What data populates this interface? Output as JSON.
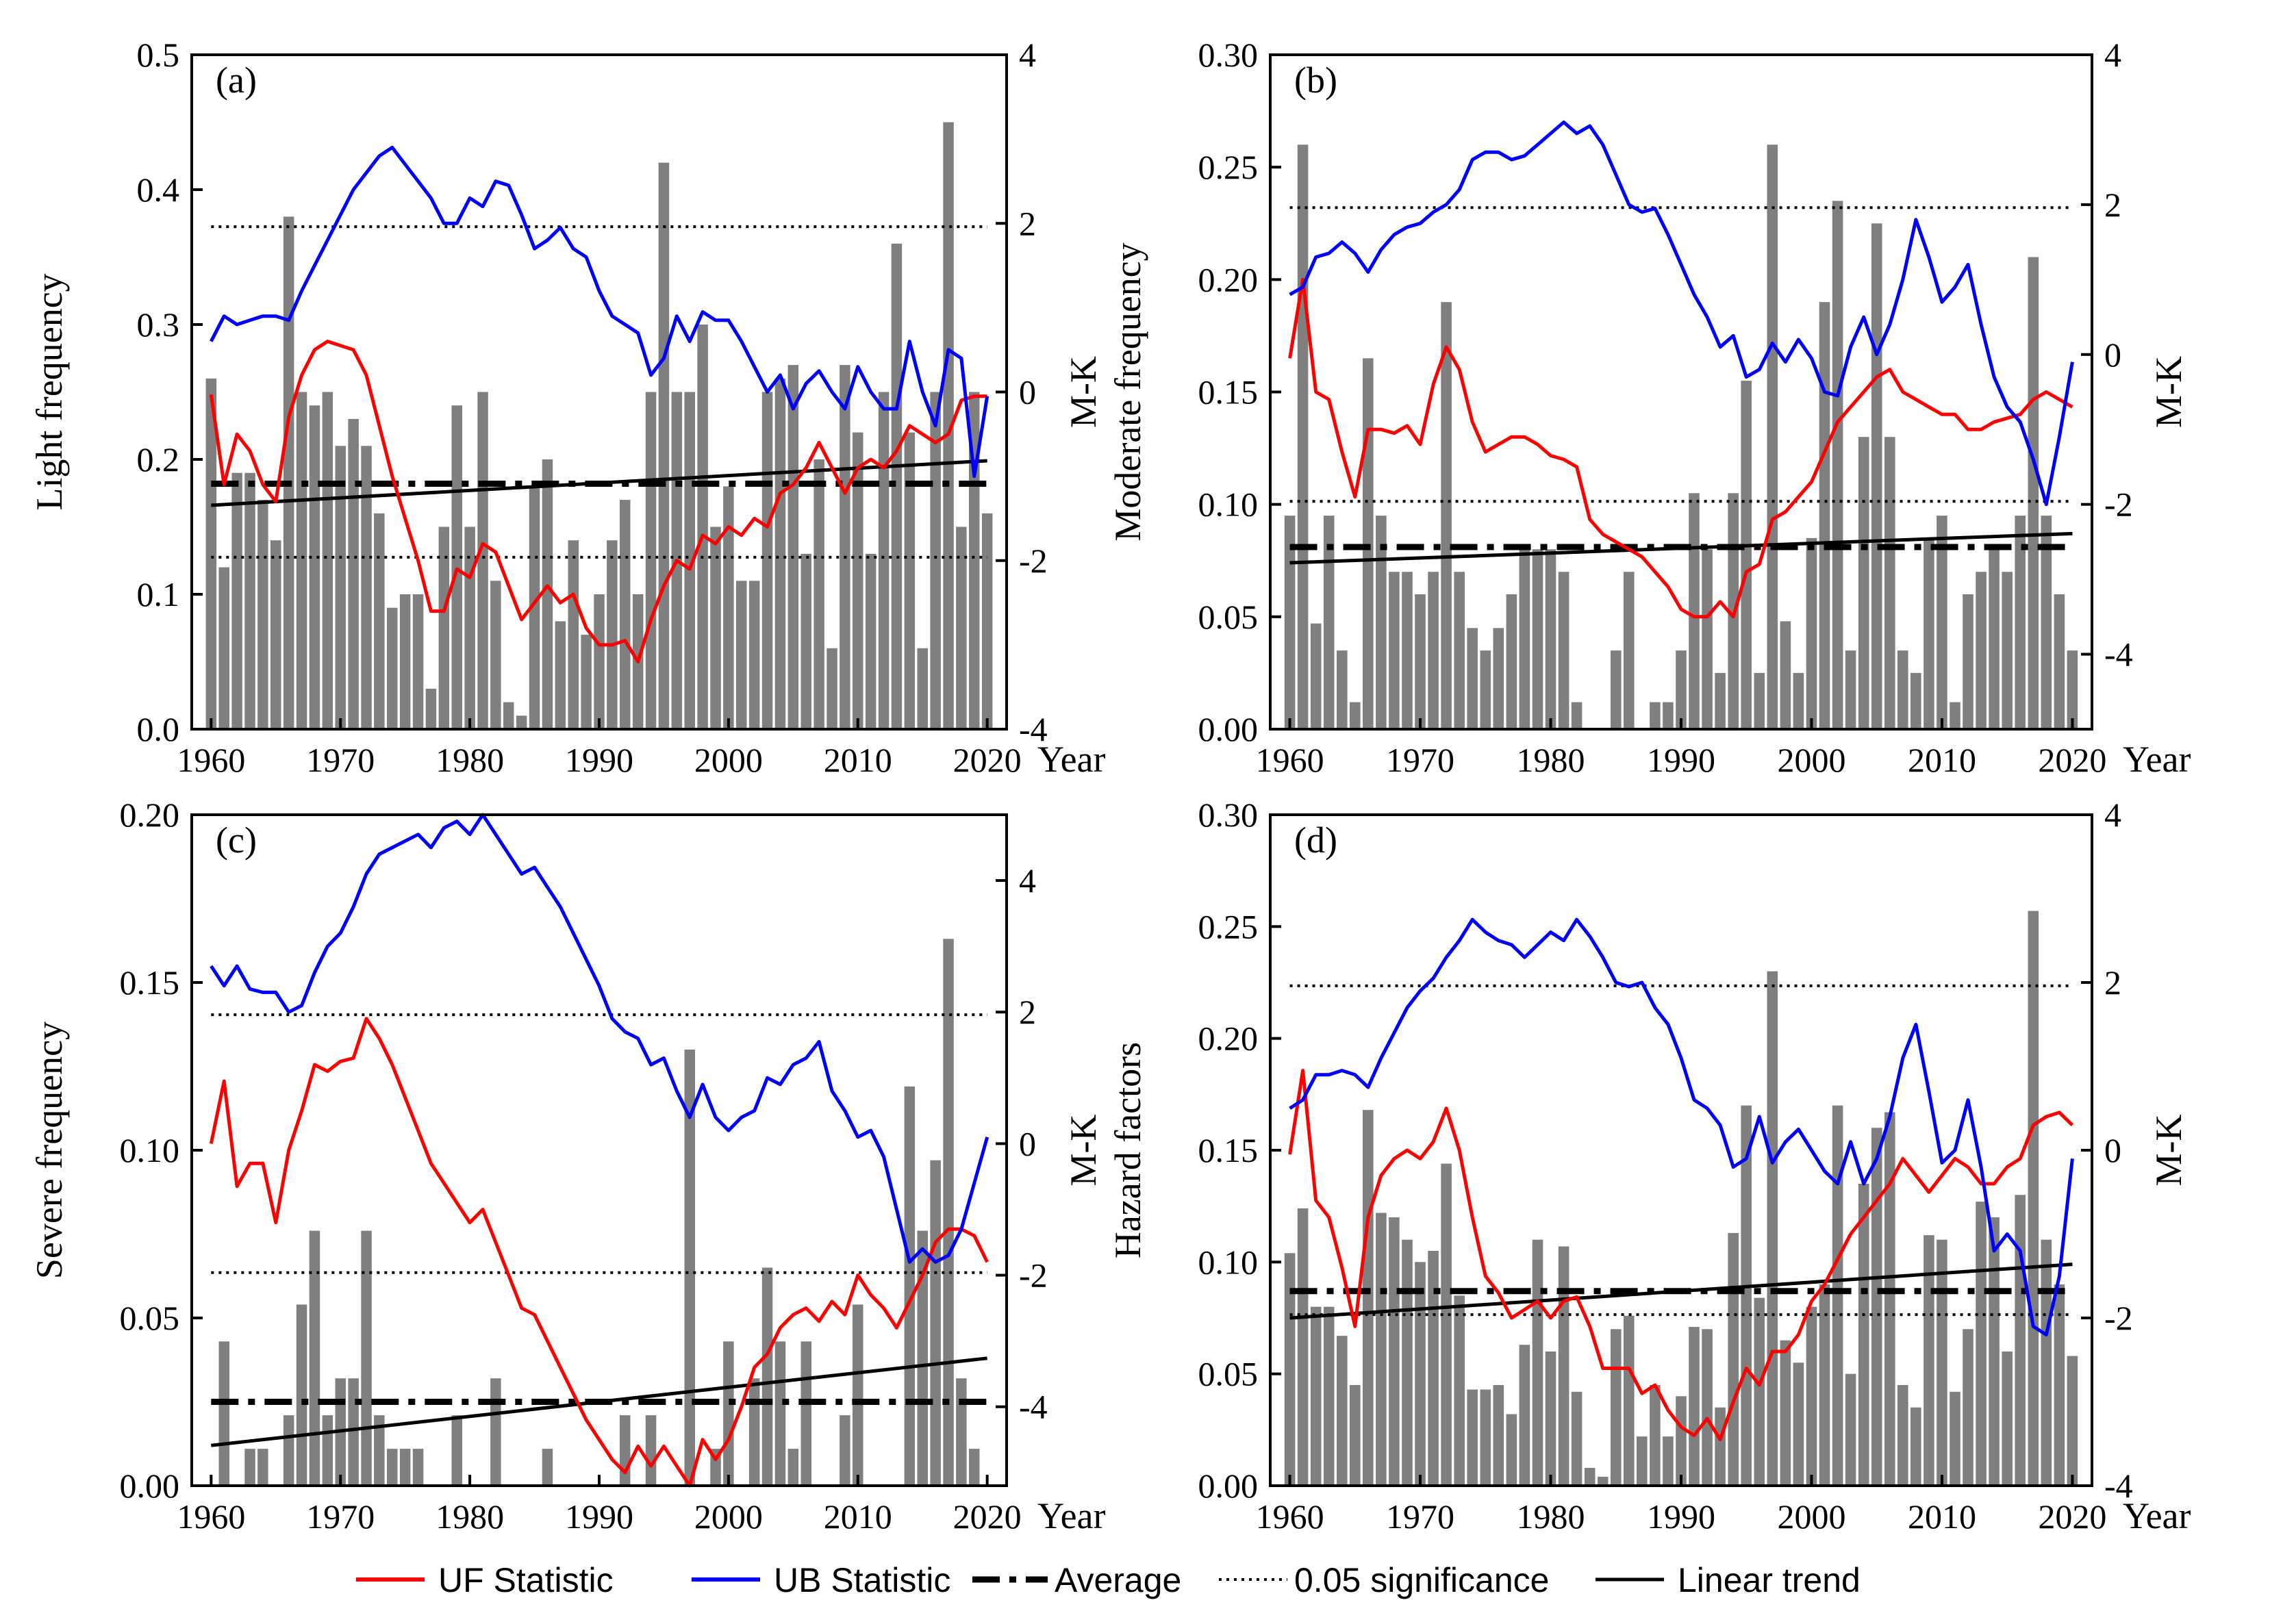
{
  "colors": {
    "uf": "#ff0000",
    "ub": "#0000ff",
    "bar": "#7f7f7f",
    "black": "#000000"
  },
  "legend": {
    "uf": "UF Statistic",
    "ub": "UB Statistic",
    "average": "Average",
    "significance": "0.05 significance",
    "trend": "Linear trend"
  },
  "chart_data": [
    {
      "panel": "(a)",
      "type": "bar",
      "title": "",
      "xlabel": "Year",
      "ylabel": "Light frequency",
      "y2label": "M-K",
      "xlim": [
        1958.5,
        2021.5
      ],
      "ylim": [
        0,
        0.5
      ],
      "yticks": [
        "0.0",
        "0.1",
        "0.2",
        "0.3",
        "0.4",
        "0.5"
      ],
      "y2lim": [
        -4,
        4
      ],
      "y2ticks": [
        "-4",
        "-2",
        "0",
        "2",
        "4"
      ],
      "xticks": [
        "1960",
        "1970",
        "1980",
        "1990",
        "2000",
        "2010",
        "2020"
      ],
      "years_start": 1960,
      "values": [
        0.26,
        0.12,
        0.19,
        0.19,
        0.17,
        0.14,
        0.38,
        0.25,
        0.24,
        0.25,
        0.21,
        0.23,
        0.21,
        0.16,
        0.09,
        0.1,
        0.1,
        0.03,
        0.15,
        0.24,
        0.15,
        0.25,
        0.11,
        0.02,
        0.01,
        0.18,
        0.2,
        0.08,
        0.14,
        0.07,
        0.1,
        0.14,
        0.17,
        0.1,
        0.25,
        0.42,
        0.25,
        0.25,
        0.3,
        0.15,
        0.18,
        0.11,
        0.11,
        0.25,
        0.26,
        0.27,
        0.13,
        0.2,
        0.06,
        0.27,
        0.22,
        0.13,
        0.25,
        0.36,
        0.22,
        0.06,
        0.25,
        0.45,
        0.15,
        0.25,
        0.16
      ],
      "average": 0.182,
      "trend": [
        0.166,
        0.199
      ],
      "significance": [
        1.96,
        -1.96
      ],
      "uf": [
        -0.03,
        -1.1,
        -0.5,
        -0.7,
        -1.1,
        -1.3,
        -0.3,
        0.2,
        0.5,
        0.6,
        0.55,
        0.5,
        0.2,
        -0.4,
        -1.0,
        -1.5,
        -2.0,
        -2.6,
        -2.6,
        -2.1,
        -2.2,
        -1.8,
        -1.9,
        -2.3,
        -2.7,
        -2.5,
        -2.3,
        -2.5,
        -2.4,
        -2.8,
        -3.0,
        -3.0,
        -2.95,
        -3.2,
        -2.7,
        -2.3,
        -2.0,
        -2.1,
        -1.7,
        -1.8,
        -1.6,
        -1.7,
        -1.5,
        -1.6,
        -1.2,
        -1.1,
        -0.9,
        -0.6,
        -0.9,
        -1.2,
        -0.9,
        -0.8,
        -0.9,
        -0.7,
        -0.4,
        -0.5,
        -0.6,
        -0.5,
        -0.1,
        -0.05,
        -0.05
      ],
      "ub": [
        0.6,
        0.9,
        0.8,
        0.85,
        0.9,
        0.9,
        0.85,
        1.2,
        1.5,
        1.8,
        2.1,
        2.4,
        2.6,
        2.8,
        2.9,
        2.7,
        2.5,
        2.3,
        2.0,
        2.0,
        2.3,
        2.2,
        2.5,
        2.45,
        2.1,
        1.7,
        1.8,
        1.95,
        1.7,
        1.6,
        1.2,
        0.9,
        0.8,
        0.7,
        0.2,
        0.4,
        0.9,
        0.6,
        0.95,
        0.85,
        0.85,
        0.6,
        0.3,
        0.0,
        0.2,
        -0.2,
        0.1,
        0.25,
        0.0,
        -0.2,
        0.3,
        0.0,
        -0.2,
        -0.2,
        0.6,
        0.0,
        -0.4,
        0.5,
        0.4,
        -1.0,
        -0.05
      ]
    },
    {
      "panel": "(b)",
      "type": "bar",
      "title": "",
      "xlabel": "Year",
      "ylabel": "Moderate frequency",
      "y2label": "M-K",
      "xlim": [
        1958.5,
        2021.5
      ],
      "ylim": [
        0,
        0.3
      ],
      "yticks": [
        "0.00",
        "0.05",
        "0.10",
        "0.15",
        "0.20",
        "0.25",
        "0.30"
      ],
      "y2lim": [
        -5,
        4
      ],
      "y2ticks": [
        "-4",
        "-2",
        "0",
        "2",
        "4"
      ],
      "xticks": [
        "1960",
        "1970",
        "1980",
        "1990",
        "2000",
        "2010",
        "2020"
      ],
      "years_start": 1960,
      "values": [
        0.095,
        0.26,
        0.047,
        0.095,
        0.035,
        0.012,
        0.165,
        0.095,
        0.07,
        0.07,
        0.06,
        0.07,
        0.19,
        0.07,
        0.045,
        0.035,
        0.045,
        0.06,
        0.08,
        0.08,
        0.08,
        0.07,
        0.012,
        0.0,
        0.0,
        0.035,
        0.07,
        0.0,
        0.012,
        0.012,
        0.035,
        0.105,
        0.08,
        0.025,
        0.105,
        0.155,
        0.025,
        0.26,
        0.048,
        0.025,
        0.085,
        0.19,
        0.235,
        0.035,
        0.13,
        0.225,
        0.13,
        0.035,
        0.025,
        0.085,
        0.095,
        0.012,
        0.06,
        0.07,
        0.08,
        0.07,
        0.095,
        0.21,
        0.095,
        0.06,
        0.035
      ],
      "average": 0.081,
      "trend": [
        0.074,
        0.087
      ],
      "significance": [
        1.96,
        -1.96
      ],
      "uf": [
        -0.05,
        1.0,
        -0.5,
        -0.6,
        -1.3,
        -1.9,
        -1.0,
        -1.0,
        -1.05,
        -0.95,
        -1.2,
        -0.4,
        0.1,
        -0.2,
        -0.9,
        -1.3,
        -1.2,
        -1.1,
        -1.1,
        -1.2,
        -1.35,
        -1.4,
        -1.5,
        -2.2,
        -2.4,
        -2.5,
        -2.6,
        -2.7,
        -2.9,
        -3.1,
        -3.4,
        -3.5,
        -3.5,
        -3.3,
        -3.5,
        -2.9,
        -2.8,
        -2.2,
        -2.1,
        -1.9,
        -1.7,
        -1.3,
        -0.9,
        -0.7,
        -0.5,
        -0.3,
        -0.2,
        -0.5,
        -0.6,
        -0.7,
        -0.8,
        -0.8,
        -1.0,
        -1.0,
        -0.9,
        -0.85,
        -0.8,
        -0.6,
        -0.5,
        -0.6,
        -0.7
      ],
      "ub": [
        0.8,
        0.9,
        1.3,
        1.35,
        1.5,
        1.35,
        1.1,
        1.4,
        1.6,
        1.7,
        1.75,
        1.9,
        2.0,
        2.2,
        2.6,
        2.7,
        2.7,
        2.6,
        2.65,
        2.8,
        2.95,
        3.1,
        2.95,
        3.05,
        2.8,
        2.4,
        2.0,
        1.9,
        1.95,
        1.6,
        1.2,
        0.8,
        0.5,
        0.1,
        0.25,
        -0.3,
        -0.2,
        0.15,
        -0.1,
        0.2,
        -0.05,
        -0.5,
        -0.55,
        0.1,
        0.5,
        0.0,
        0.4,
        1.0,
        1.8,
        1.3,
        0.7,
        0.9,
        1.2,
        0.4,
        -0.3,
        -0.7,
        -0.9,
        -1.4,
        -2.0,
        -1.1,
        -0.1
      ]
    },
    {
      "panel": "(c)",
      "type": "bar",
      "title": "",
      "xlabel": "Year",
      "ylabel": "Severe frequency",
      "y2label": "M-K",
      "xlim": [
        1958.5,
        2021.5
      ],
      "ylim": [
        0,
        0.2
      ],
      "yticks": [
        "0.00",
        "0.05",
        "0.10",
        "0.15",
        "0.20"
      ],
      "y2lim": [
        -5.2,
        5
      ],
      "y2ticks": [
        "-4",
        "-2",
        "0",
        "2",
        "4"
      ],
      "xticks": [
        "1960",
        "1970",
        "1980",
        "1990",
        "2000",
        "2010",
        "2020"
      ],
      "years_start": 1960,
      "values": [
        0.0,
        0.043,
        0.0,
        0.011,
        0.011,
        0.0,
        0.021,
        0.054,
        0.076,
        0.021,
        0.032,
        0.032,
        0.076,
        0.021,
        0.011,
        0.011,
        0.011,
        0.0,
        0.0,
        0.021,
        0.0,
        0.0,
        0.032,
        0.0,
        0.0,
        0.0,
        0.011,
        0.0,
        0.0,
        0.0,
        0.0,
        0.0,
        0.021,
        0.0,
        0.021,
        0.0,
        0.0,
        0.13,
        0.0,
        0.011,
        0.043,
        0.0,
        0.032,
        0.065,
        0.043,
        0.011,
        0.043,
        0.0,
        0.0,
        0.021,
        0.054,
        0.0,
        0.0,
        0.0,
        0.119,
        0.076,
        0.097,
        0.163,
        0.032,
        0.011,
        0.0
      ],
      "average": 0.025,
      "trend": [
        0.012,
        0.038
      ],
      "significance": [
        1.96,
        -1.96
      ],
      "uf": [
        0.0,
        0.95,
        -0.65,
        -0.3,
        -0.3,
        -1.2,
        -0.1,
        0.5,
        1.2,
        1.1,
        1.25,
        1.3,
        1.9,
        1.6,
        1.2,
        0.7,
        0.2,
        -0.3,
        -0.6,
        -0.9,
        -1.2,
        -1.0,
        -1.5,
        -2.0,
        -2.5,
        -2.6,
        -3.0,
        -3.4,
        -3.8,
        -4.2,
        -4.5,
        -4.8,
        -5.0,
        -4.6,
        -4.9,
        -4.6,
        -4.9,
        -5.2,
        -4.5,
        -4.8,
        -4.5,
        -4.0,
        -3.4,
        -3.2,
        -2.8,
        -2.6,
        -2.5,
        -2.7,
        -2.4,
        -2.6,
        -2.0,
        -2.3,
        -2.5,
        -2.8,
        -2.4,
        -2.0,
        -1.5,
        -1.3,
        -1.3,
        -1.4,
        -1.8
      ],
      "ub": [
        2.7,
        2.4,
        2.7,
        2.35,
        2.3,
        2.3,
        2.0,
        2.1,
        2.6,
        3.0,
        3.2,
        3.6,
        4.1,
        4.4,
        4.5,
        4.6,
        4.7,
        4.5,
        4.8,
        4.9,
        4.7,
        5.0,
        4.7,
        4.4,
        4.1,
        4.2,
        3.9,
        3.6,
        3.2,
        2.8,
        2.4,
        1.9,
        1.7,
        1.6,
        1.2,
        1.3,
        0.8,
        0.4,
        0.9,
        0.4,
        0.2,
        0.4,
        0.5,
        1.0,
        0.9,
        1.2,
        1.3,
        1.55,
        0.8,
        0.5,
        0.1,
        0.2,
        -0.2,
        -1.0,
        -1.8,
        -1.6,
        -1.8,
        -1.7,
        -1.3,
        -0.6,
        0.1
      ]
    },
    {
      "panel": "(d)",
      "type": "bar",
      "title": "",
      "xlabel": "Year",
      "ylabel": "Hazard factors",
      "y2label": "M-K",
      "xlim": [
        1958.5,
        2021.5
      ],
      "ylim": [
        0,
        0.3
      ],
      "yticks": [
        "0.00",
        "0.05",
        "0.10",
        "0.15",
        "0.20",
        "0.25",
        "0.30"
      ],
      "y2lim": [
        -4,
        4
      ],
      "y2ticks": [
        "-4",
        "-2",
        "0",
        "2",
        "4"
      ],
      "xticks": [
        "1960",
        "1970",
        "1980",
        "1990",
        "2000",
        "2010",
        "2020"
      ],
      "years_start": 1960,
      "values": [
        0.104,
        0.124,
        0.08,
        0.08,
        0.067,
        0.045,
        0.168,
        0.122,
        0.12,
        0.11,
        0.1,
        0.105,
        0.144,
        0.085,
        0.043,
        0.043,
        0.045,
        0.032,
        0.063,
        0.11,
        0.06,
        0.107,
        0.042,
        0.008,
        0.004,
        0.07,
        0.076,
        0.022,
        0.045,
        0.022,
        0.04,
        0.071,
        0.07,
        0.035,
        0.113,
        0.17,
        0.084,
        0.23,
        0.065,
        0.055,
        0.08,
        0.09,
        0.17,
        0.05,
        0.135,
        0.16,
        0.167,
        0.045,
        0.035,
        0.112,
        0.11,
        0.042,
        0.07,
        0.127,
        0.12,
        0.06,
        0.13,
        0.257,
        0.11,
        0.09,
        0.058
      ],
      "average": 0.087,
      "trend": [
        0.075,
        0.099
      ],
      "significance": [
        1.96,
        -1.96
      ],
      "uf": [
        -0.05,
        0.95,
        -0.6,
        -0.8,
        -1.4,
        -2.1,
        -0.8,
        -0.3,
        -0.1,
        0.0,
        -0.1,
        0.1,
        0.5,
        0.0,
        -0.8,
        -1.5,
        -1.7,
        -2.0,
        -1.9,
        -1.8,
        -2.0,
        -1.8,
        -1.75,
        -2.1,
        -2.6,
        -2.6,
        -2.6,
        -2.9,
        -2.8,
        -3.1,
        -3.3,
        -3.4,
        -3.2,
        -3.45,
        -3.0,
        -2.6,
        -2.8,
        -2.4,
        -2.4,
        -2.2,
        -1.8,
        -1.6,
        -1.3,
        -1.0,
        -0.8,
        -0.6,
        -0.4,
        -0.1,
        -0.3,
        -0.5,
        -0.3,
        -0.1,
        -0.2,
        -0.4,
        -0.4,
        -0.2,
        -0.1,
        0.3,
        0.4,
        0.45,
        0.3
      ],
      "ub": [
        0.5,
        0.6,
        0.9,
        0.9,
        0.95,
        0.9,
        0.75,
        1.1,
        1.4,
        1.7,
        1.9,
        2.05,
        2.3,
        2.5,
        2.75,
        2.6,
        2.5,
        2.45,
        2.3,
        2.45,
        2.6,
        2.5,
        2.75,
        2.55,
        2.3,
        2.0,
        1.95,
        2.0,
        1.7,
        1.5,
        1.1,
        0.6,
        0.5,
        0.3,
        -0.2,
        -0.1,
        0.4,
        -0.15,
        0.1,
        0.25,
        0.0,
        -0.25,
        -0.4,
        0.1,
        -0.4,
        -0.1,
        0.4,
        1.1,
        1.5,
        0.7,
        -0.15,
        0.0,
        0.6,
        -0.2,
        -1.2,
        -1.0,
        -1.2,
        -2.1,
        -2.2,
        -1.5,
        -0.1
      ]
    }
  ]
}
